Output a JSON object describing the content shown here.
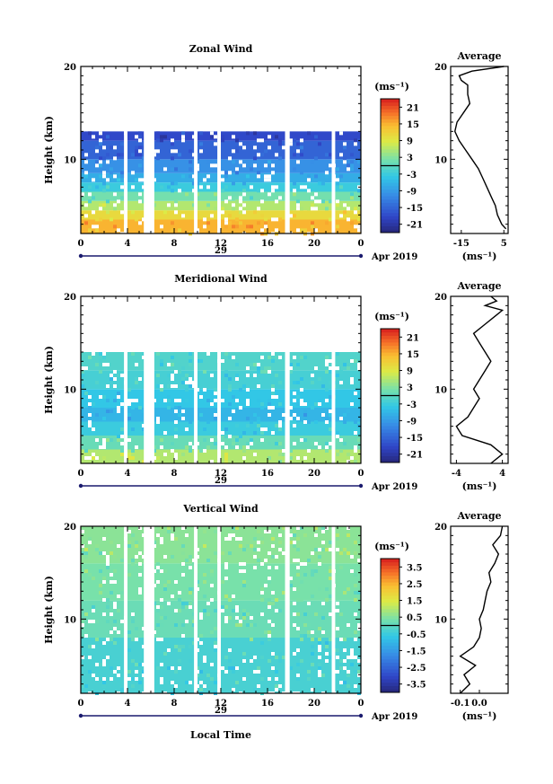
{
  "chart_data": [
    {
      "type": "heatmap",
      "title": "Zonal Wind",
      "ylabel": "Height (km)",
      "ylim": [
        2,
        20
      ],
      "xlim": [
        0,
        24
      ],
      "x_ticks": [
        "0",
        "4",
        "8",
        "12",
        "16",
        "20",
        "0"
      ],
      "y_ticks": [
        "20",
        "10"
      ],
      "date_label": "29",
      "date_suffix": "Apr 2019",
      "unit": "(ms⁻¹)",
      "colorbar": {
        "ticks": [
          "21",
          "15",
          "9",
          "3",
          "-3",
          "-9",
          "-15",
          "-21"
        ],
        "range": [
          -24,
          24
        ]
      },
      "profile": {
        "title": "Average",
        "xticks": [
          "-15",
          "5"
        ],
        "xlim": [
          -20,
          7
        ],
        "unit": "(ms⁻¹)",
        "heights": [
          2.5,
          3,
          4,
          5,
          6,
          7,
          8,
          9,
          10,
          11,
          12,
          13,
          14,
          15,
          16,
          17,
          18,
          18.5,
          19,
          19.5,
          20
        ],
        "values": [
          6,
          4,
          2,
          1,
          -1,
          -3,
          -5,
          -7,
          -10,
          -13,
          -16,
          -18,
          -17,
          -14,
          -11,
          -12,
          -12,
          -15,
          -16,
          -10,
          5
        ]
      },
      "bands": [
        {
          "y0": 2,
          "y1": 3.5,
          "v": 15
        },
        {
          "y0": 3.5,
          "y1": 4.5,
          "v": 11
        },
        {
          "y0": 4.5,
          "y1": 5.5,
          "v": 6
        },
        {
          "y0": 5.5,
          "y1": 6.5,
          "v": 2
        },
        {
          "y0": 6.5,
          "y1": 7.5,
          "v": -3
        },
        {
          "y0": 7.5,
          "y1": 8.5,
          "v": -7
        },
        {
          "y0": 8.5,
          "y1": 10,
          "v": -10
        },
        {
          "y0": 10,
          "y1": 12,
          "v": -15
        },
        {
          "y0": 12,
          "y1": 13,
          "v": -18
        }
      ],
      "gaps": [
        [
          3.7,
          4.0
        ],
        [
          5.4,
          6.3
        ],
        [
          9.7,
          10.0
        ],
        [
          11.7,
          12.0
        ],
        [
          17.5,
          17.9
        ],
        [
          21.5,
          21.8
        ]
      ]
    },
    {
      "type": "heatmap",
      "title": "Meridional Wind",
      "ylabel": "Height (km)",
      "ylim": [
        2,
        20
      ],
      "xlim": [
        0,
        24
      ],
      "x_ticks": [
        "0",
        "4",
        "8",
        "12",
        "16",
        "20",
        "0"
      ],
      "y_ticks": [
        "20",
        "10"
      ],
      "date_label": "29",
      "date_suffix": "Apr 2019",
      "unit": "(ms⁻¹)",
      "colorbar": {
        "ticks": [
          "21",
          "15",
          "9",
          "3",
          "-3",
          "-9",
          "-15",
          "-21"
        ],
        "range": [
          -24,
          24
        ]
      },
      "profile": {
        "title": "Average",
        "xticks": [
          "-4",
          "4"
        ],
        "xlim": [
          -5,
          5
        ],
        "unit": "(ms⁻¹)",
        "heights": [
          2,
          3,
          4,
          5,
          6,
          7,
          8,
          9,
          10,
          11,
          12,
          13,
          14,
          15,
          16,
          17,
          18,
          18.5,
          19,
          19.5,
          20
        ],
        "values": [
          2,
          4,
          2,
          -3,
          -4,
          -2,
          -1,
          0,
          -1,
          0,
          1,
          2,
          1,
          0,
          -1,
          1,
          3,
          4,
          1,
          3,
          2
        ]
      },
      "bands": [
        {
          "y0": 2,
          "y1": 3.5,
          "v": 6
        },
        {
          "y0": 3.5,
          "y1": 5,
          "v": 1
        },
        {
          "y0": 5,
          "y1": 6.5,
          "v": -3
        },
        {
          "y0": 6.5,
          "y1": 8,
          "v": -6
        },
        {
          "y0": 8,
          "y1": 10,
          "v": -4
        },
        {
          "y0": 10,
          "y1": 12,
          "v": -2
        },
        {
          "y0": 12,
          "y1": 14,
          "v": -1
        }
      ],
      "gaps": [
        [
          3.7,
          4.0
        ],
        [
          5.4,
          6.3
        ],
        [
          9.7,
          10.0
        ],
        [
          11.7,
          12.0
        ],
        [
          17.5,
          17.9
        ],
        [
          21.5,
          21.8
        ]
      ]
    },
    {
      "type": "heatmap",
      "title": "Vertical Wind",
      "ylabel": "Height (km)",
      "ylim": [
        2,
        20
      ],
      "xlim": [
        0,
        24
      ],
      "xlabel": "Local Time",
      "x_ticks": [
        "0",
        "4",
        "8",
        "12",
        "16",
        "20",
        "0"
      ],
      "y_ticks": [
        "20",
        "10"
      ],
      "date_label": "29",
      "date_suffix": "Apr 2019",
      "unit": "(ms⁻¹)",
      "colorbar": {
        "ticks": [
          "3.5",
          "2.5",
          "1.5",
          "0.5",
          "-0.5",
          "-1.5",
          "-2.5",
          "-3.5"
        ],
        "range": [
          -4,
          4
        ]
      },
      "profile": {
        "title": "Average",
        "xticks": [
          "-0.1",
          "0.0"
        ],
        "xlim": [
          -0.15,
          0.15
        ],
        "unit": "(ms⁻¹)",
        "heights": [
          2,
          3,
          4,
          5,
          6,
          7,
          8,
          9,
          10,
          11,
          12,
          13,
          14,
          15,
          16,
          17,
          18,
          19,
          20
        ],
        "values": [
          -0.1,
          -0.05,
          -0.08,
          -0.02,
          -0.1,
          -0.03,
          0.0,
          0.01,
          0.0,
          0.02,
          0.03,
          0.04,
          0.06,
          0.05,
          0.08,
          0.1,
          0.07,
          0.11,
          0.12
        ]
      },
      "bands": [
        {
          "y0": 2,
          "y1": 8,
          "v": -0.3
        },
        {
          "y0": 8,
          "y1": 12,
          "v": 0.2
        },
        {
          "y0": 12,
          "y1": 16,
          "v": 0.4
        },
        {
          "y0": 16,
          "y1": 20,
          "v": 0.6
        }
      ],
      "gaps": [
        [
          3.7,
          4.0
        ],
        [
          5.4,
          6.3
        ],
        [
          9.7,
          10.0
        ],
        [
          11.7,
          12.0
        ],
        [
          17.5,
          17.9
        ],
        [
          21.5,
          21.8
        ]
      ]
    }
  ]
}
